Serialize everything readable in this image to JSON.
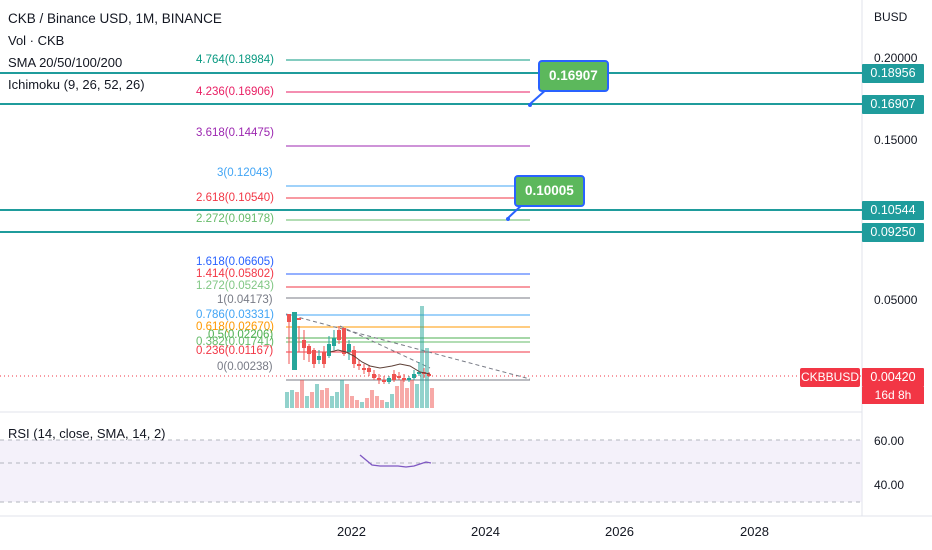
{
  "header": {
    "title": "CKB / Binance USD, 1M, BINANCE",
    "volume_label": "Vol · CKB",
    "sma_label": "SMA 20/50/100/200",
    "ichimoku_label": "Ichimoku (9, 26, 52, 26)"
  },
  "price_axis": {
    "unit": "BUSD",
    "ticks": [
      "0.20000",
      "0.15000",
      "0.05000"
    ]
  },
  "price_badges": [
    {
      "value": "0.18956",
      "color": "#1f9c9c"
    },
    {
      "value": "0.16907",
      "color": "#1f9c9c"
    },
    {
      "value": "0.10544",
      "color": "#1f9c9c"
    },
    {
      "value": "0.09250",
      "color": "#1f9c9c"
    }
  ],
  "current_price": {
    "symbol": "CKBBUSD",
    "value": "0.00420",
    "countdown": "16d 8h",
    "color": "#f23645"
  },
  "callouts": [
    {
      "value": "0.16907"
    },
    {
      "value": "0.10005"
    }
  ],
  "fib_levels": [
    {
      "label": "4.764(0.18984)",
      "color": "#089981"
    },
    {
      "label": "4.236(0.16906)",
      "color": "#e91e63"
    },
    {
      "label": "3.618(0.14475)",
      "color": "#9c27b0"
    },
    {
      "label": "3(0.12043)",
      "color": "#42a5f5"
    },
    {
      "label": "2.618(0.10540)",
      "color": "#f23645"
    },
    {
      "label": "2.272(0.09178)",
      "color": "#66bb6a"
    },
    {
      "label": "1.618(0.06605)",
      "color": "#2962ff"
    },
    {
      "label": "1.414(0.05802)",
      "color": "#f23645"
    },
    {
      "label": "1.272(0.05243)",
      "color": "#81c784"
    },
    {
      "label": "1(0.04173)",
      "color": "#787b86"
    },
    {
      "label": "0.786(0.03331)",
      "color": "#42a5f5"
    },
    {
      "label": "0.618(0.02670)",
      "color": "#ff9800"
    },
    {
      "label": "0.5(0.02206)",
      "color": "#4caf50"
    },
    {
      "label": "0.382(0.01741)",
      "color": "#66bb6a"
    },
    {
      "label": "0.236(0.01167)",
      "color": "#f23645"
    },
    {
      "label": "0(0.00238)",
      "color": "#787b86"
    }
  ],
  "rsi": {
    "label": "RSI (14, close, SMA, 14, 2)",
    "ticks": [
      "60.00",
      "40.00"
    ]
  },
  "x_axis": {
    "ticks": [
      "2022",
      "2024",
      "2026",
      "2028"
    ]
  },
  "chart_data": {
    "type": "candlestick",
    "title": "CKB / Binance USD, 1M, BINANCE",
    "x_ticks": [
      "2022",
      "2024",
      "2026",
      "2028"
    ],
    "y_ticks": [
      0.2,
      0.15,
      0.05
    ],
    "horizontal_levels": [
      0.18956,
      0.16907,
      0.10544,
      0.0925
    ],
    "last_price": 0.0042,
    "rsi_ticks": [
      60,
      40
    ],
    "up_color": "#26a69a",
    "down_color": "#ef5350"
  }
}
